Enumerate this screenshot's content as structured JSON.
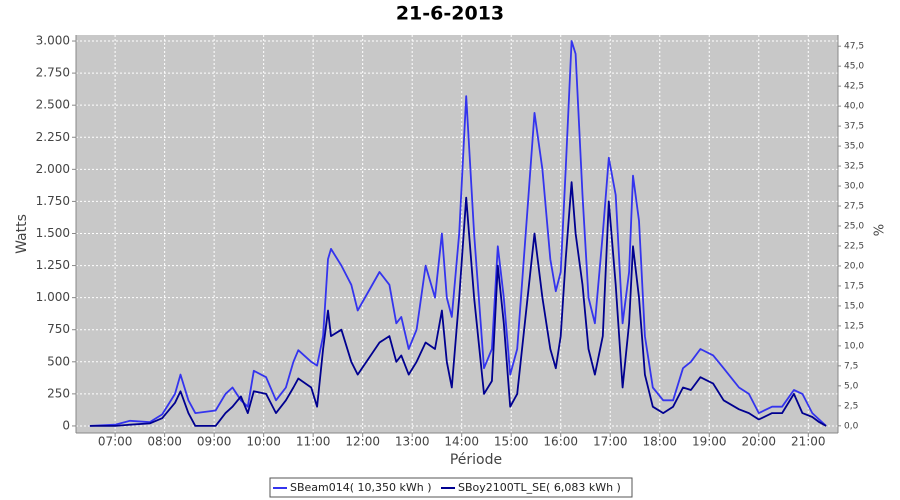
{
  "chart_data": {
    "type": "line",
    "title": "21-6-2013",
    "x_label": "Période",
    "y_label": "Watts",
    "y2_label": "%",
    "x": [
      6.49,
      7.0,
      7.3,
      7.7,
      7.95,
      8.21,
      8.32,
      8.48,
      8.62,
      9.03,
      9.23,
      9.37,
      9.54,
      9.68,
      9.8,
      10.05,
      10.25,
      10.45,
      10.6,
      10.7,
      10.96,
      11.08,
      11.2,
      11.3,
      11.36,
      11.57,
      11.77,
      11.9,
      12.34,
      12.54,
      12.68,
      12.78,
      12.93,
      13.09,
      13.27,
      13.46,
      13.6,
      13.7,
      13.8,
      13.95,
      14.09,
      14.25,
      14.45,
      14.61,
      14.73,
      14.85,
      14.98,
      15.12,
      15.33,
      15.47,
      15.63,
      15.79,
      15.9,
      16.0,
      16.1,
      16.22,
      16.3,
      16.44,
      16.56,
      16.69,
      16.85,
      16.97,
      17.11,
      17.25,
      17.38,
      17.46,
      17.58,
      17.7,
      17.86,
      18.07,
      18.27,
      18.47,
      18.63,
      18.82,
      19.08,
      19.29,
      19.6,
      19.8,
      20.0,
      20.27,
      20.47,
      20.71,
      20.88,
      21.08,
      21.22,
      21.36
    ],
    "series": [
      {
        "name": "SBeam014( 10,350 kWh )",
        "color": "#3434ee",
        "values": [
          0,
          10,
          40,
          30,
          90,
          250,
          400,
          200,
          100,
          120,
          250,
          300,
          200,
          150,
          430,
          380,
          200,
          300,
          500,
          590,
          500,
          470,
          700,
          1300,
          1380,
          1250,
          1100,
          900,
          1200,
          1100,
          800,
          850,
          600,
          750,
          1250,
          1000,
          1500,
          1000,
          850,
          1500,
          2570,
          1500,
          450,
          600,
          1400,
          1000,
          400,
          600,
          1700,
          2440,
          2000,
          1300,
          1050,
          1200,
          2000,
          3000,
          2900,
          1800,
          1000,
          800,
          1500,
          2090,
          1800,
          800,
          1200,
          1950,
          1600,
          700,
          300,
          200,
          200,
          450,
          500,
          600,
          550,
          450,
          300,
          250,
          100,
          150,
          150,
          280,
          250,
          100,
          50,
          0
        ]
      },
      {
        "name": "SBoy2100TL_SE( 6,083 kWh )",
        "color": "#000090",
        "values": [
          0,
          0,
          10,
          20,
          60,
          180,
          270,
          100,
          0,
          0,
          100,
          150,
          230,
          100,
          270,
          250,
          100,
          200,
          300,
          370,
          300,
          150,
          600,
          900,
          700,
          750,
          500,
          400,
          650,
          700,
          500,
          550,
          400,
          500,
          650,
          600,
          900,
          500,
          300,
          1000,
          1780,
          1000,
          250,
          350,
          1250,
          800,
          150,
          250,
          1000,
          1500,
          1000,
          600,
          450,
          700,
          1300,
          1900,
          1500,
          1100,
          600,
          400,
          700,
          1750,
          1100,
          300,
          800,
          1400,
          1000,
          400,
          150,
          100,
          150,
          300,
          280,
          380,
          330,
          200,
          130,
          100,
          50,
          100,
          100,
          250,
          100,
          70,
          30,
          0
        ]
      }
    ],
    "xlim": [
      6.21,
      21.6
    ],
    "xticks": [
      {
        "value": 7,
        "label": "07:00"
      },
      {
        "value": 8,
        "label": "08:00"
      },
      {
        "value": 9,
        "label": "09:00"
      },
      {
        "value": 10,
        "label": "10:00"
      },
      {
        "value": 11,
        "label": "11:00"
      },
      {
        "value": 12,
        "label": "12:00"
      },
      {
        "value": 13,
        "label": "13:00"
      },
      {
        "value": 14,
        "label": "14:00"
      },
      {
        "value": 15,
        "label": "15:00"
      },
      {
        "value": 16,
        "label": "16:00"
      },
      {
        "value": 17,
        "label": "17:00"
      },
      {
        "value": 18,
        "label": "18:00"
      },
      {
        "value": 19,
        "label": "19:00"
      },
      {
        "value": 20,
        "label": "20:00"
      },
      {
        "value": 21,
        "label": "21:00"
      }
    ],
    "ylim": [
      -55,
      3047
    ],
    "yticks": [
      0,
      250,
      500,
      750,
      {
        "value": 1000,
        "label": "1.000"
      },
      {
        "value": 1250,
        "label": "1.250"
      },
      {
        "value": 1500,
        "label": "1.500"
      },
      {
        "value": 1750,
        "label": "1.750"
      },
      {
        "value": 2000,
        "label": "2.000"
      },
      {
        "value": 2250,
        "label": "2.250"
      },
      {
        "value": 2500,
        "label": "2.500"
      },
      {
        "value": 2750,
        "label": "2.750"
      },
      {
        "value": 3000,
        "label": "3.000"
      }
    ],
    "y2lim": [
      -0.9,
      48.9
    ],
    "y2ticks": [
      {
        "value": 0,
        "label": "0,0"
      },
      {
        "value": 2.5,
        "label": "2,5"
      },
      {
        "value": 5,
        "label": "5,0"
      },
      {
        "value": 7.5,
        "label": "7,5"
      },
      {
        "value": 10,
        "label": "10,0"
      },
      {
        "value": 12.5,
        "label": "12,5"
      },
      {
        "value": 15,
        "label": "15,0"
      },
      {
        "value": 17.5,
        "label": "17,5"
      },
      {
        "value": 20,
        "label": "20,0"
      },
      {
        "value": 22.5,
        "label": "22,5"
      },
      {
        "value": 25,
        "label": "25,0"
      },
      {
        "value": 27.5,
        "label": "27,5"
      },
      {
        "value": 30,
        "label": "30,0"
      },
      {
        "value": 32.5,
        "label": "32,5"
      },
      {
        "value": 35,
        "label": "35,0"
      },
      {
        "value": 37.5,
        "label": "37,5"
      },
      {
        "value": 40,
        "label": "40,0"
      },
      {
        "value": 42.5,
        "label": "42,5"
      },
      {
        "value": 45,
        "label": "45,0"
      },
      {
        "value": 47.5,
        "label": "47,5"
      }
    ],
    "grid": true
  }
}
